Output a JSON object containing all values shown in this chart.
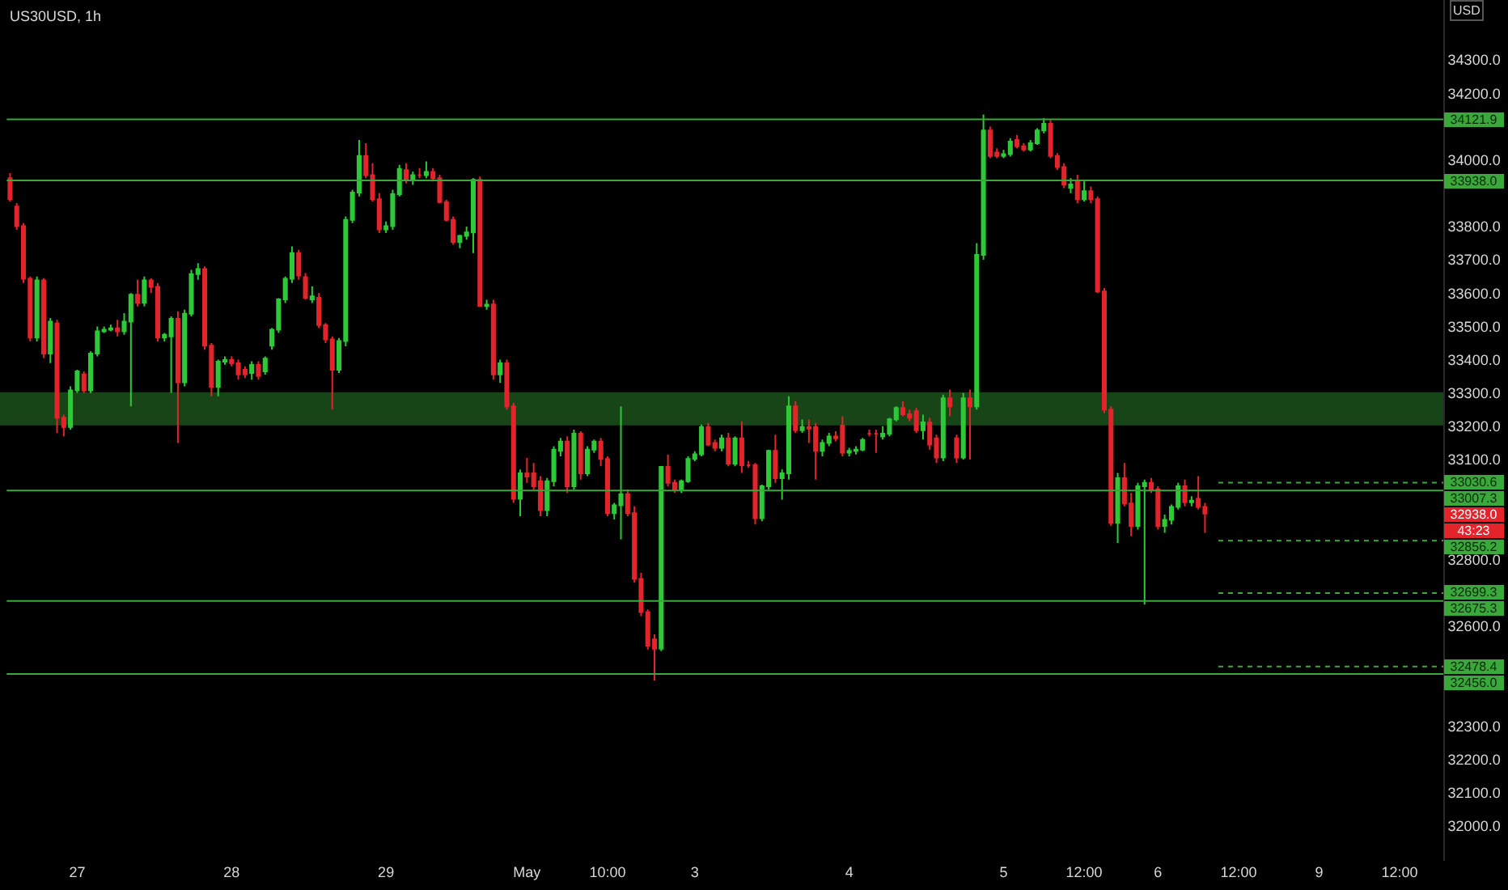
{
  "chart_data": {
    "type": "candlestick",
    "title": "US30USD, 1h",
    "ylabel": "USD",
    "colors": [
      "#e3242b",
      "#e3242b",
      "#e3242b",
      "#e3242b",
      "#2dc937",
      "#e3242b",
      "#2dc937",
      "#e3242b",
      "#e3242b",
      "#2dc937",
      "#2dc937",
      "#e3242b",
      "#2dc937",
      "#2dc937",
      "#2dc937",
      "#2dc937",
      "#e3242b",
      "#2dc937",
      "#2dc937",
      "#e3242b",
      "#2dc937",
      "#e3242b",
      "#e3242b",
      "#2dc937",
      "#2dc937",
      "#e3242b",
      "#2dc937",
      "#2dc937",
      "#2dc937",
      "#e3242b",
      "#e3242b",
      "#2dc937",
      "#2dc937",
      "#e3242b",
      "#e3242b",
      "#e3242b",
      "#2dc937",
      "#e3242b",
      "#2dc937",
      "#2dc937",
      "#2dc937",
      "#2dc937",
      "#2dc937",
      "#e3242b",
      "#e3242b",
      "#2dc937",
      "#e3242b",
      "#e3242b",
      "#e3242b",
      "#2dc937",
      "#2dc937",
      "#2dc937",
      "#2dc937",
      "#e3242b",
      "#e3242b",
      "#e3242b",
      "#2dc937",
      "#2dc937",
      "#2dc937",
      "#e3242b",
      "#2dc937",
      "#e3242b",
      "#2dc937",
      "#e3242b",
      "#e3242b",
      "#e3242b",
      "#e3242b",
      "#2dc937",
      "#2dc937",
      "#2dc937",
      "#e3242b",
      "#2dc937",
      "#e3242b",
      "#2dc937",
      "#e3242b",
      "#e3242b",
      "#2dc937",
      "#e3242b",
      "#e3242b",
      "#e3242b",
      "#2dc937",
      "#2dc937",
      "#2dc937",
      "#e3242b",
      "#2dc937",
      "#e3242b",
      "#2dc937",
      "#2dc937",
      "#e3242b",
      "#e3242b",
      "#2dc937",
      "#2dc937",
      "#e3242b",
      "#e3242b",
      "#e3242b",
      "#e3242b",
      "#e3242b",
      "#2dc937",
      "#e3242b",
      "#e3242b",
      "#2dc937",
      "#2dc937",
      "#2dc937",
      "#2dc937",
      "#e3242b",
      "#e3242b",
      "#2dc937",
      "#e3242b",
      "#2dc937",
      "#e3242b",
      "#e3242b",
      "#e3242b",
      "#2dc937",
      "#2dc937",
      "#e3242b",
      "#2dc937",
      "#2dc937",
      "#e3242b",
      "#2dc937",
      "#e3242b",
      "#e3242b",
      "#2dc937",
      "#2dc937",
      "#e3242b",
      "#e3242b",
      "#2dc937",
      "#2dc937",
      "#2dc937",
      "#e3242b",
      "#e3242b",
      "#2dc937",
      "#2dc937",
      "#2dc937",
      "#e3242b",
      "#e3242b",
      "#e3242b",
      "#2dc937",
      "#e3242b",
      "#e3242b",
      "#2dc937",
      "#e3242b",
      "#e3242b",
      "#2dc937",
      "#e3242b",
      "#2dc937",
      "#2dc937",
      "#e3242b",
      "#e3242b",
      "#2dc937",
      "#2dc937",
      "#e3242b",
      "#e3242b",
      "#2dc937",
      "#2dc937",
      "#2dc937",
      "#e3242b",
      "#e3242b",
      "#e3242b",
      "#2dc937",
      "#e3242b",
      "#2dc937",
      "#e3242b",
      "#e3242b",
      "#e3242b",
      "#e3242b",
      "#2dc937",
      "#e3242b",
      "#e3242b",
      "#2dc937",
      "#2dc937",
      "#e3242b",
      "#e3242b",
      "#2dc937",
      "#2dc937",
      "#2dc937",
      "#e3242b",
      "#2dc937",
      "#e3242b",
      "#e3242b",
      null,
      null,
      null,
      null,
      null,
      null,
      null,
      null,
      null,
      null,
      null,
      null,
      null,
      null,
      null,
      null,
      null,
      null,
      null,
      null,
      null,
      null,
      null,
      null,
      null,
      null,
      null,
      null,
      null,
      null,
      null,
      null,
      null,
      null,
      null
    ],
    "categories": [
      null,
      null,
      null,
      null,
      null,
      null,
      null,
      null,
      null,
      null,
      "27",
      null,
      null,
      null,
      null,
      null,
      null,
      null,
      null,
      null,
      null,
      null,
      null,
      null,
      null,
      null,
      null,
      null,
      null,
      null,
      null,
      null,
      null,
      "28",
      null,
      null,
      null,
      null,
      null,
      null,
      null,
      null,
      null,
      null,
      null,
      null,
      null,
      null,
      null,
      null,
      null,
      null,
      null,
      null,
      null,
      null,
      "29",
      null,
      null,
      null,
      null,
      null,
      null,
      null,
      null,
      null,
      null,
      null,
      null,
      null,
      null,
      null,
      null,
      null,
      null,
      null,
      null,
      "May",
      null,
      null,
      null,
      null,
      null,
      null,
      null,
      null,
      null,
      null,
      null,
      "10:00",
      null,
      null,
      null,
      null,
      null,
      null,
      null,
      null,
      null,
      null,
      null,
      null,
      "3",
      null,
      null,
      null,
      null,
      null,
      null,
      null,
      null,
      null,
      null,
      null,
      null,
      null,
      null,
      null,
      null,
      null,
      null,
      null,
      null,
      null,
      null,
      "4",
      null,
      null,
      null,
      null,
      null,
      null,
      null,
      null,
      null,
      null,
      null,
      null,
      null,
      null,
      null,
      null,
      null,
      null,
      null,
      null,
      null,
      null,
      "5",
      null,
      null,
      null,
      null,
      null,
      null,
      null,
      null,
      null,
      null,
      null,
      "12:00",
      null,
      null,
      null,
      null,
      null,
      null,
      null,
      null,
      null,
      null,
      "6",
      null,
      null,
      null,
      null,
      null,
      null,
      null,
      null,
      null,
      null,
      null,
      "12:00",
      null,
      null,
      null,
      null,
      null,
      null,
      null,
      null,
      null,
      null,
      null,
      "9",
      null,
      null,
      null,
      null,
      null,
      null,
      null,
      null,
      null,
      null,
      null,
      "12:00",
      null,
      null,
      null,
      null,
      null,
      null
    ],
    "ohlc": [
      [
        33945,
        33960,
        33875,
        33882
      ],
      [
        33860,
        33870,
        33790,
        33801
      ],
      [
        33801,
        33810,
        33630,
        33643
      ],
      [
        33643,
        33650,
        33455,
        33466
      ],
      [
        33466,
        33650,
        33455,
        33638
      ],
      [
        33638,
        33645,
        33405,
        33418
      ],
      [
        33418,
        33525,
        33390,
        33514
      ],
      [
        33509,
        33520,
        33180,
        33226
      ],
      [
        33226,
        33235,
        33170,
        33198
      ],
      [
        33198,
        33320,
        33190,
        33308
      ],
      [
        33308,
        33370,
        33300,
        33365
      ],
      [
        33356,
        33365,
        33300,
        33308
      ],
      [
        33308,
        33425,
        33300,
        33418
      ],
      [
        33418,
        33500,
        33410,
        33485
      ],
      [
        33485,
        33500,
        33480,
        33490
      ],
      [
        33490,
        33505,
        33485,
        33494
      ],
      [
        33494,
        33520,
        33470,
        33485
      ],
      [
        33485,
        33540,
        33475,
        33514
      ],
      [
        33514,
        33600,
        33260,
        33595
      ],
      [
        33595,
        33640,
        33560,
        33571
      ],
      [
        33571,
        33650,
        33560,
        33638
      ],
      [
        33638,
        33645,
        33600,
        33619
      ],
      [
        33619,
        33630,
        33455,
        33466
      ],
      [
        33466,
        33480,
        33455,
        33475
      ],
      [
        33470,
        33530,
        33300,
        33523
      ],
      [
        33523,
        33545,
        33150,
        33332
      ],
      [
        33332,
        33550,
        33320,
        33538
      ],
      [
        33538,
        33670,
        33530,
        33657
      ],
      [
        33657,
        33690,
        33640,
        33672
      ],
      [
        33672,
        33680,
        33430,
        33442
      ],
      [
        33442,
        33450,
        33290,
        33318
      ],
      [
        33318,
        33400,
        33290,
        33394
      ],
      [
        33394,
        33410,
        33385,
        33399
      ],
      [
        33399,
        33410,
        33380,
        33389
      ],
      [
        33389,
        33400,
        33340,
        33356
      ],
      [
        33370,
        33380,
        33345,
        33356
      ],
      [
        33360,
        33395,
        33340,
        33384
      ],
      [
        33384,
        33395,
        33340,
        33351
      ],
      [
        33365,
        33410,
        33355,
        33403
      ],
      [
        33442,
        33495,
        33430,
        33490
      ],
      [
        33490,
        33585,
        33480,
        33581
      ],
      [
        33581,
        33650,
        33570,
        33643
      ],
      [
        33643,
        33740,
        33630,
        33720
      ],
      [
        33720,
        33730,
        33640,
        33653
      ],
      [
        33648,
        33660,
        33580,
        33586
      ],
      [
        33581,
        33620,
        33570,
        33590
      ],
      [
        33586,
        33600,
        33495,
        33504
      ],
      [
        33504,
        33510,
        33450,
        33461
      ],
      [
        33461,
        33470,
        33250,
        33370
      ],
      [
        33370,
        33465,
        33360,
        33456
      ],
      [
        33456,
        33830,
        33440,
        33820
      ],
      [
        33820,
        33910,
        33810,
        33902
      ],
      [
        33902,
        34060,
        33890,
        34012
      ],
      [
        34012,
        34050,
        33945,
        33954
      ],
      [
        33954,
        33990,
        33875,
        33882
      ],
      [
        33882,
        33900,
        33780,
        33791
      ],
      [
        33791,
        33815,
        33780,
        33801
      ],
      [
        33801,
        33910,
        33790,
        33897
      ],
      [
        33897,
        33985,
        33890,
        33973
      ],
      [
        33969,
        33990,
        33930,
        33940
      ],
      [
        33940,
        33965,
        33925,
        33954
      ],
      [
        33954,
        33975,
        33945,
        33954
      ],
      [
        33954,
        33995,
        33945,
        33964
      ],
      [
        33964,
        33975,
        33935,
        33945
      ],
      [
        33945,
        33955,
        33870,
        33873
      ],
      [
        33873,
        33880,
        33815,
        33820
      ],
      [
        33820,
        33830,
        33745,
        33753
      ],
      [
        33753,
        33775,
        33735,
        33772
      ],
      [
        33772,
        33800,
        33760,
        33782
      ],
      [
        33782,
        33945,
        33720,
        33940
      ],
      [
        33940,
        33950,
        33560,
        33561
      ],
      [
        33561,
        33580,
        33550,
        33565
      ],
      [
        33566,
        33580,
        33340,
        33356
      ],
      [
        33356,
        33400,
        33330,
        33389
      ],
      [
        33389,
        33400,
        33250,
        33260
      ],
      [
        33260,
        33270,
        32970,
        32982
      ],
      [
        32982,
        33070,
        32930,
        33059
      ],
      [
        33059,
        33105,
        33030,
        33049
      ],
      [
        33059,
        33090,
        33010,
        33020
      ],
      [
        33035,
        33050,
        32930,
        32948
      ],
      [
        32948,
        33045,
        32930,
        33035
      ],
      [
        33035,
        33140,
        33020,
        33130
      ],
      [
        33126,
        33165,
        33110,
        33154
      ],
      [
        33154,
        33170,
        33000,
        33020
      ],
      [
        33020,
        33190,
        33010,
        33178
      ],
      [
        33178,
        33185,
        33040,
        33059
      ],
      [
        33059,
        33140,
        33050,
        33130
      ],
      [
        33130,
        33160,
        33120,
        33154
      ],
      [
        33154,
        33165,
        33080,
        33102
      ],
      [
        33102,
        33110,
        32930,
        32939
      ],
      [
        32939,
        32970,
        32920,
        32963
      ],
      [
        32963,
        33260,
        32860,
        32996
      ],
      [
        32996,
        33010,
        32930,
        32939
      ],
      [
        32939,
        32960,
        32730,
        32742
      ],
      [
        32742,
        32760,
        32630,
        32642
      ],
      [
        32642,
        32650,
        32530,
        32541
      ],
      [
        32560,
        32575,
        32436,
        32532
      ],
      [
        32532,
        33078,
        32525,
        33078
      ],
      [
        33078,
        33115,
        33020,
        33030
      ],
      [
        33030,
        33040,
        33000,
        33011
      ],
      [
        33011,
        33040,
        33000,
        33035
      ],
      [
        33035,
        33110,
        33030,
        33102
      ],
      [
        33102,
        33125,
        33095,
        33116
      ],
      [
        33116,
        33205,
        33110,
        33198
      ],
      [
        33198,
        33210,
        33140,
        33145
      ],
      [
        33150,
        33160,
        33125,
        33135
      ],
      [
        33135,
        33175,
        33125,
        33164
      ],
      [
        33164,
        33180,
        33080,
        33087
      ],
      [
        33087,
        33170,
        33080,
        33164
      ],
      [
        33164,
        33215,
        33060,
        33083
      ],
      [
        33083,
        33095,
        33075,
        33083
      ],
      [
        33083,
        33090,
        32905,
        32924
      ],
      [
        32924,
        33025,
        32915,
        33020
      ],
      [
        33020,
        33130,
        33010,
        33126
      ],
      [
        33126,
        33175,
        33030,
        33044
      ],
      [
        33044,
        33070,
        32980,
        33059
      ],
      [
        33059,
        33290,
        33040,
        33260
      ],
      [
        33260,
        33275,
        33180,
        33188
      ],
      [
        33188,
        33220,
        33180,
        33198
      ],
      [
        33198,
        33220,
        33150,
        33193
      ],
      [
        33198,
        33210,
        33040,
        33126
      ],
      [
        33126,
        33160,
        33110,
        33150
      ],
      [
        33150,
        33180,
        33140,
        33169
      ],
      [
        33169,
        33185,
        33155,
        33164
      ],
      [
        33202,
        33230,
        33110,
        33121
      ],
      [
        33121,
        33135,
        33110,
        33126
      ],
      [
        33126,
        33140,
        33115,
        33130
      ],
      [
        33130,
        33165,
        33125,
        33159
      ],
      [
        33178,
        33190,
        33170,
        33178
      ],
      [
        33178,
        33190,
        33120,
        33178
      ],
      [
        33169,
        33200,
        33160,
        33178
      ],
      [
        33178,
        33225,
        33170,
        33221
      ],
      [
        33221,
        33260,
        33215,
        33255
      ],
      [
        33255,
        33275,
        33230,
        33236
      ],
      [
        33236,
        33250,
        33215,
        33226
      ],
      [
        33245,
        33255,
        33180,
        33188
      ],
      [
        33188,
        33235,
        33160,
        33212
      ],
      [
        33212,
        33225,
        33130,
        33145
      ],
      [
        33164,
        33175,
        33090,
        33106
      ],
      [
        33106,
        33295,
        33095,
        33284
      ],
      [
        33284,
        33310,
        33230,
        33260
      ],
      [
        33164,
        33175,
        33090,
        33106
      ],
      [
        33106,
        33300,
        33100,
        33284
      ],
      [
        33284,
        33310,
        33100,
        33260
      ],
      [
        33260,
        33750,
        33250,
        33715
      ],
      [
        33715,
        34136,
        33700,
        34088
      ],
      [
        34088,
        34100,
        34005,
        34012
      ],
      [
        34022,
        34035,
        34005,
        34012
      ],
      [
        34012,
        34030,
        34005,
        34017
      ],
      [
        34017,
        34065,
        34010,
        34055
      ],
      [
        34060,
        34075,
        34035,
        34041
      ],
      [
        34041,
        34050,
        34025,
        34031
      ],
      [
        34031,
        34060,
        34025,
        34050
      ],
      [
        34050,
        34095,
        34045,
        34088
      ],
      [
        34088,
        34125,
        34080,
        34108
      ],
      [
        34108,
        34120,
        34005,
        34012
      ],
      [
        34012,
        34020,
        33970,
        33978
      ],
      [
        33978,
        33990,
        33915,
        33926
      ],
      [
        33916,
        33945,
        33900,
        33926
      ],
      [
        33935,
        33955,
        33870,
        33882
      ],
      [
        33882,
        33935,
        33875,
        33906
      ],
      [
        33906,
        33920,
        33870,
        33882
      ],
      [
        33882,
        33890,
        33600,
        33605
      ],
      [
        33605,
        33615,
        33240,
        33250
      ],
      [
        33250,
        33260,
        32900,
        32910
      ],
      [
        32910,
        33060,
        32850,
        33044
      ],
      [
        33044,
        33090,
        32960,
        32968
      ],
      [
        32968,
        33000,
        32870,
        32901
      ],
      [
        32901,
        33030,
        32890,
        33020
      ],
      [
        33020,
        33040,
        32665,
        33030
      ],
      [
        33030,
        33045,
        33000,
        33011
      ],
      [
        33011,
        33020,
        32890,
        32901
      ],
      [
        32901,
        32935,
        32880,
        32919
      ],
      [
        32919,
        32965,
        32905,
        32958
      ],
      [
        32958,
        33030,
        32950,
        33020
      ],
      [
        33020,
        33040,
        32960,
        32972
      ],
      [
        32972,
        32990,
        32960,
        32977
      ],
      [
        32982,
        33050,
        32950,
        32958
      ],
      [
        32958,
        32970,
        32880,
        32938
      ],
      null,
      null,
      null,
      null,
      null,
      null,
      null,
      null,
      null,
      null,
      null,
      null,
      null,
      null,
      null,
      null,
      null,
      null,
      null,
      null,
      null,
      null,
      null,
      null,
      null,
      null,
      null,
      null,
      null,
      null,
      null,
      null,
      null,
      null,
      null
    ],
    "ylim": [
      31895,
      34480
    ],
    "yticks": [
      {
        "value": 32000,
        "label": "32000.0"
      },
      {
        "value": 32100,
        "label": "32100.0"
      },
      {
        "value": 32200,
        "label": "32200.0"
      },
      {
        "value": 32300,
        "label": "32300.0"
      },
      {
        "value": 32600,
        "label": "32600.0"
      },
      {
        "value": 32800,
        "label": "32800.0"
      },
      {
        "value": 33100,
        "label": "33100.0"
      },
      {
        "value": 33200,
        "label": "33200.0"
      },
      {
        "value": 33300,
        "label": "33300.0"
      },
      {
        "value": 33400,
        "label": "33400.0"
      },
      {
        "value": 33500,
        "label": "33500.0"
      },
      {
        "value": 33600,
        "label": "33600.0"
      },
      {
        "value": 33700,
        "label": "33700.0"
      },
      {
        "value": 33800,
        "label": "33800.0"
      },
      {
        "value": 34000,
        "label": "34000.0"
      },
      {
        "value": 34200,
        "label": "34200.0"
      },
      {
        "value": 34300,
        "label": "34300.0"
      }
    ],
    "ref_lines": [
      {
        "axis": "y",
        "value": 34121.9,
        "label": "34121.9",
        "color": "#3aa83a",
        "line_style": "solid"
      },
      {
        "axis": "y",
        "value": 33938.0,
        "label": "33938.0",
        "color": "#3aa83a",
        "line_style": "solid"
      },
      {
        "axis": "y",
        "value": 33030.6,
        "label": "33030.6",
        "color": "#3aa83a",
        "line_style": "dotted"
      },
      {
        "axis": "y",
        "value": 33007.3,
        "label": "33007.3",
        "color": "#3aa83a",
        "line_style": "solid"
      },
      {
        "axis": "y",
        "value": 32856.2,
        "label": "32856.2",
        "color": "#3aa83a",
        "line_style": "dotted"
      },
      {
        "axis": "y",
        "value": 32699.3,
        "label": "32699.3",
        "color": "#3aa83a",
        "line_style": "dotted"
      },
      {
        "axis": "y",
        "value": 32675.3,
        "label": "32675.3",
        "color": "#3aa83a",
        "line_style": "solid"
      },
      {
        "axis": "y",
        "value": 32478.4,
        "label": "32478.4",
        "color": "#3aa83a",
        "line_style": "dotted"
      },
      {
        "axis": "y",
        "value": 32456.0,
        "label": "32456.0",
        "color": "#3aa83a",
        "line_style": "solid"
      }
    ],
    "bands": [
      {
        "axis": "y",
        "from": 33205,
        "to": 33300,
        "color": "#1f5c1f"
      }
    ],
    "annotations": [
      "32938.0",
      "43:23"
    ],
    "grid": false,
    "legend": false
  }
}
